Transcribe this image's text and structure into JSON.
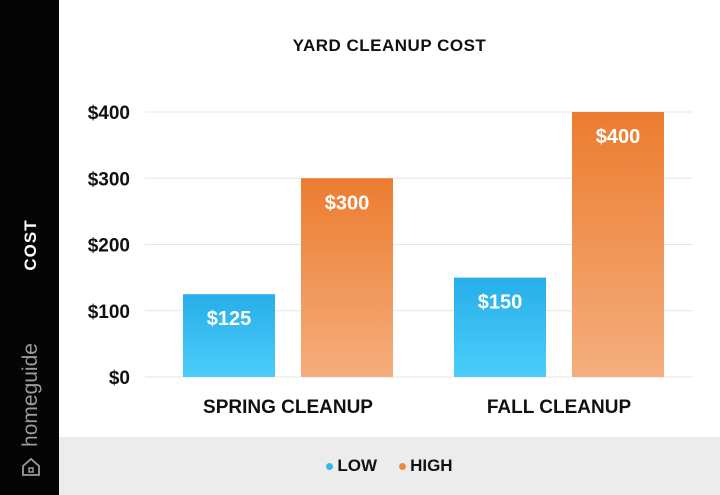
{
  "sidebar": {
    "axis_title": "COST",
    "brand_name": "homeguide",
    "brand_icon": "house-icon"
  },
  "colors": {
    "low": "#33b8ee",
    "high": "#ef8a3d",
    "sidebar": "#050505",
    "legend_bg": "#ececec"
  },
  "chart_data": {
    "type": "bar",
    "title": "YARD CLEANUP COST",
    "ylabel": "COST",
    "xlabel": "",
    "categories": [
      "SPRING CLEANUP",
      "FALL CLEANUP"
    ],
    "series": [
      {
        "name": "LOW",
        "values": [
          125,
          150
        ],
        "labels": [
          "$125",
          "$150"
        ]
      },
      {
        "name": "HIGH",
        "values": [
          300,
          400
        ],
        "labels": [
          "$300",
          "$400"
        ]
      }
    ],
    "ylim": [
      0,
      400
    ],
    "yticks": [
      0,
      100,
      200,
      300,
      400
    ],
    "ytick_labels": [
      "$0",
      "$100",
      "$200",
      "$300",
      "$400"
    ],
    "grid": true,
    "legend_position": "bottom"
  }
}
